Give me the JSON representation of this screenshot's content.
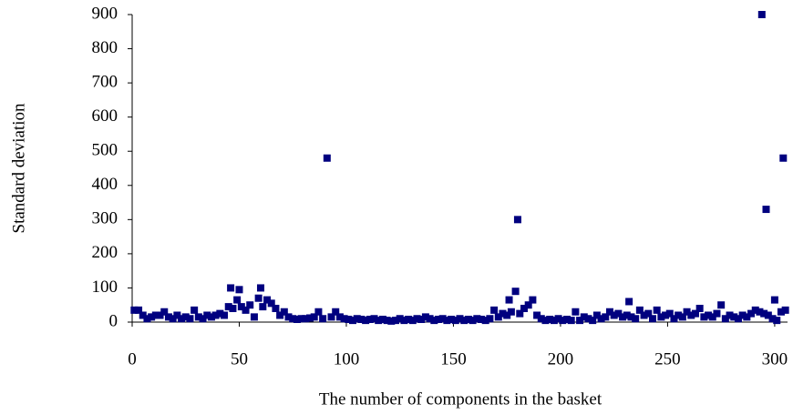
{
  "chart_data": {
    "type": "scatter",
    "x_label": "The number of components in the basket",
    "y_label": "Standard deviation",
    "color": "#00007f",
    "xlim": [
      0,
      306
    ],
    "xticks": [
      0,
      50,
      100,
      150,
      200,
      250,
      300
    ],
    "ylim": [
      0,
      900
    ],
    "yticks": [
      0,
      100,
      200,
      300,
      400,
      500,
      600,
      700,
      800,
      900
    ],
    "x": [
      1,
      3,
      5,
      7,
      9,
      11,
      13,
      15,
      17,
      19,
      21,
      23,
      25,
      27,
      29,
      31,
      33,
      35,
      37,
      39,
      41,
      43,
      45,
      46,
      47,
      49,
      50,
      51,
      53,
      55,
      57,
      59,
      60,
      61,
      63,
      65,
      67,
      69,
      71,
      73,
      75,
      77,
      79,
      81,
      83,
      85,
      87,
      89,
      91,
      93,
      95,
      97,
      99,
      101,
      103,
      105,
      107,
      109,
      111,
      113,
      115,
      117,
      119,
      121,
      123,
      125,
      127,
      129,
      131,
      133,
      135,
      137,
      139,
      141,
      143,
      145,
      147,
      149,
      151,
      153,
      155,
      157,
      159,
      161,
      163,
      165,
      167,
      169,
      171,
      173,
      175,
      176,
      177,
      179,
      180,
      181,
      183,
      185,
      187,
      189,
      191,
      193,
      195,
      197,
      199,
      201,
      203,
      205,
      207,
      209,
      211,
      213,
      215,
      217,
      219,
      221,
      223,
      225,
      227,
      229,
      231,
      232,
      233,
      235,
      237,
      239,
      241,
      243,
      245,
      247,
      249,
      251,
      253,
      255,
      257,
      259,
      261,
      263,
      265,
      267,
      269,
      271,
      273,
      275,
      277,
      279,
      281,
      283,
      285,
      287,
      289,
      291,
      293,
      294,
      295,
      296,
      297,
      299,
      300,
      301,
      303,
      304,
      305
    ],
    "values": [
      35,
      35,
      20,
      10,
      15,
      20,
      20,
      30,
      15,
      10,
      20,
      10,
      15,
      10,
      35,
      15,
      10,
      20,
      15,
      20,
      25,
      20,
      45,
      100,
      40,
      65,
      95,
      45,
      35,
      50,
      15,
      70,
      100,
      45,
      65,
      55,
      40,
      20,
      30,
      15,
      10,
      8,
      10,
      10,
      12,
      15,
      30,
      10,
      480,
      15,
      30,
      15,
      10,
      8,
      5,
      10,
      8,
      5,
      8,
      10,
      5,
      8,
      5,
      3,
      5,
      10,
      5,
      8,
      5,
      10,
      8,
      15,
      10,
      5,
      8,
      10,
      5,
      8,
      5,
      10,
      5,
      8,
      5,
      10,
      8,
      5,
      10,
      35,
      15,
      25,
      20,
      65,
      30,
      90,
      300,
      25,
      40,
      50,
      65,
      20,
      10,
      5,
      8,
      5,
      10,
      5,
      8,
      5,
      30,
      5,
      15,
      10,
      5,
      20,
      10,
      15,
      30,
      20,
      25,
      15,
      20,
      60,
      15,
      10,
      35,
      20,
      25,
      10,
      35,
      15,
      20,
      25,
      10,
      20,
      15,
      30,
      20,
      25,
      40,
      15,
      20,
      15,
      25,
      50,
      10,
      20,
      15,
      10,
      20,
      15,
      25,
      35,
      30,
      900,
      25,
      330,
      20,
      10,
      65,
      5,
      30,
      480,
      35
    ]
  }
}
